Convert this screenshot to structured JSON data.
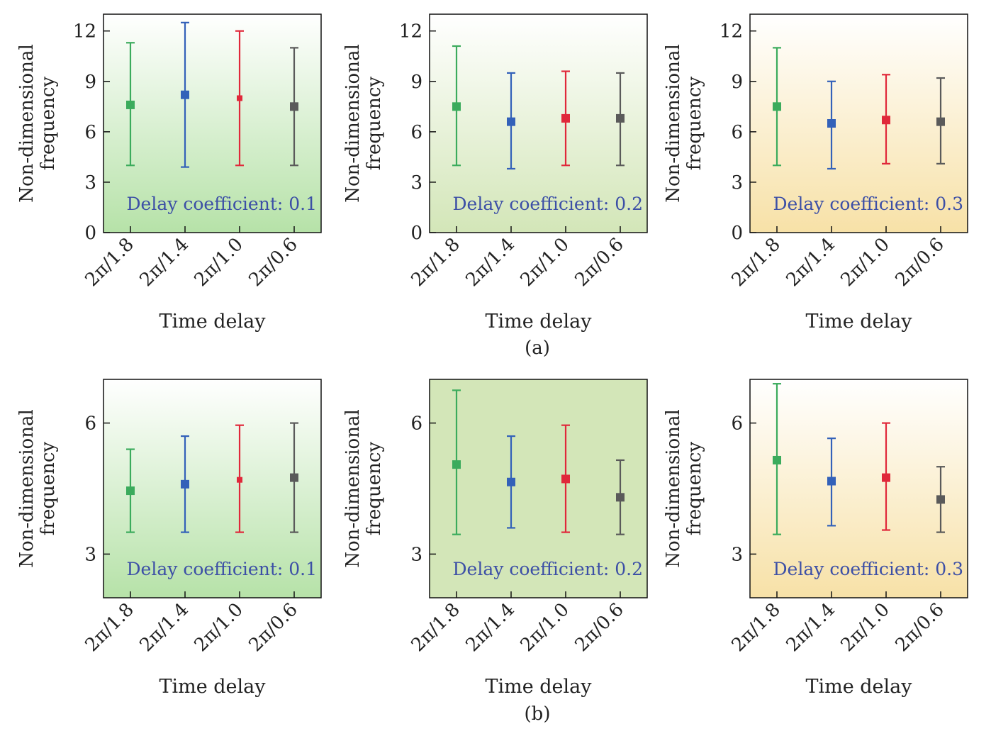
{
  "captions": [
    "(a)",
    "(b)"
  ],
  "colors": {
    "green": "#3bab5c",
    "blue": "#3361b9",
    "red": "#e0283a",
    "gray": "#5a5a5a",
    "annotation": "#3c4fa6",
    "bg_green": "#b6e2a8",
    "bg_olive": "#d3e6b8",
    "bg_yellow": "#f7e1a7"
  },
  "chart_data": [
    {
      "type": "scatter",
      "panel": "a1",
      "xlabel": "Time delay",
      "ylabel": [
        "Non-dimensional",
        "frequency"
      ],
      "categories": [
        "2π/1.8",
        "2π/1.4",
        "2π/1.0",
        "2π/0.6"
      ],
      "ylim": [
        0,
        13
      ],
      "yticks": [
        "0",
        "3",
        "6",
        "9",
        "12"
      ],
      "annotation": "Delay coefficient: 0.1",
      "background": "gradient-green",
      "points": [
        {
          "x": "2π/1.8",
          "y": 7.6,
          "low": 4.0,
          "high": 11.3,
          "color": "green"
        },
        {
          "x": "2π/1.4",
          "y": 8.2,
          "low": 3.9,
          "high": 12.5,
          "color": "blue"
        },
        {
          "x": "2π/1.0",
          "y": 8.0,
          "low": 4.0,
          "high": 12.0,
          "color": "red"
        },
        {
          "x": "2π/0.6",
          "y": 7.5,
          "low": 4.0,
          "high": 11.0,
          "color": "gray"
        }
      ]
    },
    {
      "type": "scatter",
      "panel": "a2",
      "xlabel": "Time delay",
      "ylabel": [
        "Non-dimensional",
        "frequency"
      ],
      "categories": [
        "2π/1.8",
        "2π/1.4",
        "2π/1.0",
        "2π/0.6"
      ],
      "ylim": [
        0,
        13
      ],
      "yticks": [
        "0",
        "3",
        "6",
        "9",
        "12"
      ],
      "annotation": "Delay coefficient: 0.2",
      "background": "gradient-olive",
      "points": [
        {
          "x": "2π/1.8",
          "y": 7.5,
          "low": 4.0,
          "high": 11.1,
          "color": "green"
        },
        {
          "x": "2π/1.4",
          "y": 6.6,
          "low": 3.8,
          "high": 9.5,
          "color": "blue"
        },
        {
          "x": "2π/1.0",
          "y": 6.8,
          "low": 4.0,
          "high": 9.6,
          "color": "red"
        },
        {
          "x": "2π/0.6",
          "y": 6.8,
          "low": 4.0,
          "high": 9.5,
          "color": "gray"
        }
      ]
    },
    {
      "type": "scatter",
      "panel": "a3",
      "xlabel": "Time delay",
      "ylabel": [
        "Non-dimensional",
        "frequency"
      ],
      "categories": [
        "2π/1.8",
        "2π/1.4",
        "2π/1.0",
        "2π/0.6"
      ],
      "ylim": [
        0,
        13
      ],
      "yticks": [
        "0",
        "3",
        "6",
        "9",
        "12"
      ],
      "annotation": "Delay coefficient: 0.3",
      "background": "gradient-yellow",
      "points": [
        {
          "x": "2π/1.8",
          "y": 7.5,
          "low": 4.0,
          "high": 11.0,
          "color": "green"
        },
        {
          "x": "2π/1.4",
          "y": 6.5,
          "low": 3.8,
          "high": 9.0,
          "color": "blue"
        },
        {
          "x": "2π/1.0",
          "y": 6.7,
          "low": 4.1,
          "high": 9.4,
          "color": "red"
        },
        {
          "x": "2π/0.6",
          "y": 6.6,
          "low": 4.1,
          "high": 9.2,
          "color": "gray"
        }
      ]
    },
    {
      "type": "scatter",
      "panel": "b1",
      "xlabel": "Time delay",
      "ylabel": [
        "Non-dimensional",
        "frequency"
      ],
      "categories": [
        "2π/1.8",
        "2π/1.4",
        "2π/1.0",
        "2π/0.6"
      ],
      "ylim": [
        2,
        7
      ],
      "yticks": [
        "3",
        "6"
      ],
      "annotation": "Delay coefficient: 0.1",
      "background": "gradient-green",
      "points": [
        {
          "x": "2π/1.8",
          "y": 4.45,
          "low": 3.5,
          "high": 5.4,
          "color": "green"
        },
        {
          "x": "2π/1.4",
          "y": 4.6,
          "low": 3.5,
          "high": 5.7,
          "color": "blue"
        },
        {
          "x": "2π/1.0",
          "y": 4.7,
          "low": 3.5,
          "high": 5.95,
          "color": "red"
        },
        {
          "x": "2π/0.6",
          "y": 4.75,
          "low": 3.5,
          "high": 6.0,
          "color": "gray"
        }
      ]
    },
    {
      "type": "scatter",
      "panel": "b2",
      "xlabel": "Time delay",
      "ylabel": [
        "Non-dimensional",
        "frequency"
      ],
      "categories": [
        "2π/1.8",
        "2π/1.4",
        "2π/1.0",
        "2π/0.6"
      ],
      "ylim": [
        2,
        7
      ],
      "yticks": [
        "3",
        "6"
      ],
      "annotation": "Delay coefficient: 0.2",
      "background": "solid-olive",
      "points": [
        {
          "x": "2π/1.8",
          "y": 5.05,
          "low": 3.45,
          "high": 6.75,
          "color": "green"
        },
        {
          "x": "2π/1.4",
          "y": 4.65,
          "low": 3.6,
          "high": 5.7,
          "color": "blue"
        },
        {
          "x": "2π/1.0",
          "y": 4.72,
          "low": 3.5,
          "high": 5.95,
          "color": "red"
        },
        {
          "x": "2π/0.6",
          "y": 4.3,
          "low": 3.45,
          "high": 5.15,
          "color": "gray"
        }
      ]
    },
    {
      "type": "scatter",
      "panel": "b3",
      "xlabel": "Time delay",
      "ylabel": [
        "Non-dimensional",
        "frequency"
      ],
      "categories": [
        "2π/1.8",
        "2π/1.4",
        "2π/1.0",
        "2π/0.6"
      ],
      "ylim": [
        2,
        7
      ],
      "yticks": [
        "3",
        "6"
      ],
      "annotation": "Delay coefficient: 0.3",
      "background": "gradient-yellow",
      "points": [
        {
          "x": "2π/1.8",
          "y": 5.15,
          "low": 3.45,
          "high": 6.9,
          "color": "green"
        },
        {
          "x": "2π/1.4",
          "y": 4.67,
          "low": 3.65,
          "high": 5.65,
          "color": "blue"
        },
        {
          "x": "2π/1.0",
          "y": 4.75,
          "low": 3.55,
          "high": 6.0,
          "color": "red"
        },
        {
          "x": "2π/0.6",
          "y": 4.25,
          "low": 3.5,
          "high": 5.0,
          "color": "gray"
        }
      ]
    }
  ]
}
